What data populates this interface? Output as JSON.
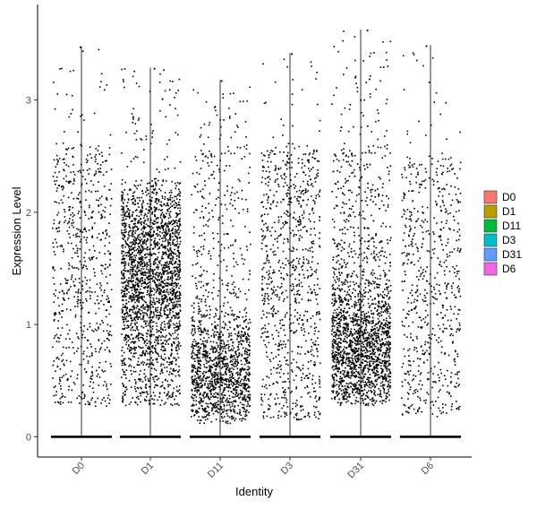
{
  "chart_data": {
    "type": "scatter",
    "subtype": "jittered violin-style strip plot",
    "xlabel": "Identity",
    "ylabel": "Expression Level",
    "categories": [
      "D0",
      "D1",
      "D11",
      "D3",
      "D31",
      "D6"
    ],
    "ylim": [
      -0.18,
      3.85
    ],
    "yticks": [
      0,
      1,
      2,
      3
    ],
    "grid": false,
    "legend": {
      "placement": "right",
      "entries": [
        {
          "label": "D0",
          "color": "#F8766D"
        },
        {
          "label": "D1",
          "color": "#B79F00"
        },
        {
          "label": "D11",
          "color": "#00BA38"
        },
        {
          "label": "D3",
          "color": "#00BFC4"
        },
        {
          "label": "D31",
          "color": "#619CFF"
        },
        {
          "label": "D6",
          "color": "#F564E3"
        }
      ]
    },
    "point_color": "#000000",
    "series": [
      {
        "category": "D0",
        "max": 3.47,
        "zero_fraction": "majority",
        "nonzero_range": [
          0.27,
          3.47
        ],
        "nonzero_density": "medium, fairly uniform"
      },
      {
        "category": "D1",
        "max": 3.28,
        "zero_fraction": "majority",
        "nonzero_range": [
          0.28,
          3.28
        ],
        "nonzero_density": "high, concentrated 0.5–2.1"
      },
      {
        "category": "D11",
        "max": 3.17,
        "zero_fraction": "majority",
        "nonzero_range": [
          0.12,
          3.17
        ],
        "nonzero_density": "medium, concentrated 0.2–0.9"
      },
      {
        "category": "D3",
        "max": 3.41,
        "zero_fraction": "majority",
        "nonzero_range": [
          0.15,
          3.41
        ],
        "nonzero_density": "medium, fairly uniform"
      },
      {
        "category": "D31",
        "max": 3.62,
        "zero_fraction": "majority",
        "nonzero_range": [
          0.28,
          3.62
        ],
        "nonzero_density": "high, concentrated 0.3–1.2"
      },
      {
        "category": "D6",
        "max": 3.48,
        "zero_fraction": "majority",
        "nonzero_range": [
          0.18,
          3.48
        ],
        "nonzero_density": "medium-low, fairly uniform"
      }
    ]
  }
}
